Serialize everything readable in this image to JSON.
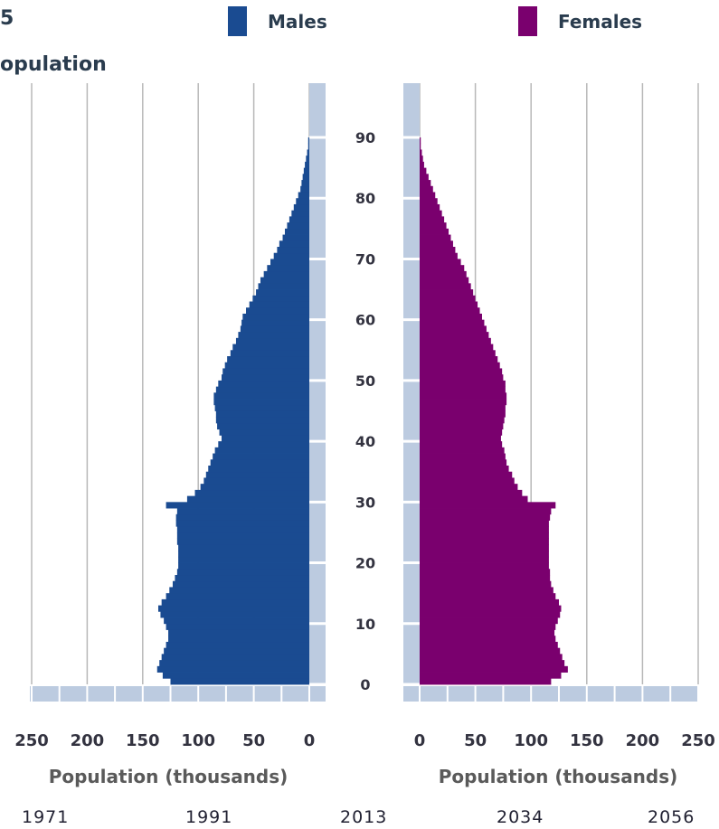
{
  "header": {
    "title_fragment": "5",
    "subtitle_fragment": "opulation"
  },
  "legend": {
    "males": {
      "label": "Males",
      "color": "#1a4b91"
    },
    "females": {
      "label": "Females",
      "color": "#7a006e"
    }
  },
  "timeline": [
    "1971",
    "1991",
    "2013",
    "2034",
    "2056"
  ],
  "chart_data": {
    "type": "bar",
    "orientation": "horizontal",
    "subtype": "population-pyramid",
    "xlabel": "Population (thousands)",
    "x_ticks_left": [
      "250",
      "200",
      "150",
      "100",
      "50",
      "0"
    ],
    "x_ticks_right": [
      "0",
      "50",
      "100",
      "150",
      "200",
      "250"
    ],
    "xlim": [
      0,
      250
    ],
    "age_ticks": [
      "0",
      "10",
      "20",
      "30",
      "40",
      "50",
      "60",
      "70",
      "80",
      "90"
    ],
    "age_range": [
      0,
      90
    ],
    "grid": true,
    "categories": [
      0,
      1,
      2,
      3,
      4,
      5,
      6,
      7,
      8,
      9,
      10,
      11,
      12,
      13,
      14,
      15,
      16,
      17,
      18,
      19,
      20,
      21,
      22,
      23,
      24,
      25,
      26,
      27,
      28,
      29,
      30,
      31,
      32,
      33,
      34,
      35,
      36,
      37,
      38,
      39,
      40,
      41,
      42,
      43,
      44,
      45,
      46,
      47,
      48,
      49,
      50,
      51,
      52,
      53,
      54,
      55,
      56,
      57,
      58,
      59,
      60,
      61,
      62,
      63,
      64,
      65,
      66,
      67,
      68,
      69,
      70,
      71,
      72,
      73,
      74,
      75,
      76,
      77,
      78,
      79,
      80,
      81,
      82,
      83,
      84,
      85,
      86,
      87,
      88,
      89,
      90
    ],
    "series": [
      {
        "name": "Males",
        "color": "#1a4b91",
        "values": [
          125,
          132,
          137,
          135,
          133,
          131,
          129,
          127,
          127,
          129,
          131,
          134,
          136,
          133,
          129,
          126,
          123,
          121,
          119,
          118,
          118,
          118,
          118,
          119,
          119,
          119,
          120,
          120,
          119,
          129,
          110,
          103,
          98,
          95,
          93,
          91,
          89,
          87,
          85,
          82,
          79,
          81,
          83,
          84,
          84,
          85,
          86,
          86,
          84,
          82,
          79,
          78,
          76,
          74,
          71,
          69,
          66,
          64,
          62,
          61,
          60,
          57,
          54,
          51,
          48,
          46,
          44,
          41,
          38,
          35,
          32,
          29,
          27,
          24,
          22,
          20,
          18,
          16,
          14,
          12,
          10,
          8,
          7,
          6,
          5,
          4,
          3,
          2,
          1,
          1,
          0
        ]
      },
      {
        "name": "Females",
        "color": "#7a006e",
        "values": [
          118,
          127,
          133,
          130,
          128,
          126,
          124,
          122,
          121,
          122,
          124,
          126,
          127,
          125,
          122,
          120,
          118,
          117,
          117,
          116,
          116,
          116,
          116,
          116,
          116,
          116,
          116,
          117,
          118,
          122,
          97,
          92,
          88,
          85,
          83,
          80,
          78,
          77,
          76,
          74,
          73,
          74,
          75,
          76,
          77,
          77,
          78,
          78,
          77,
          77,
          75,
          74,
          72,
          70,
          68,
          66,
          64,
          62,
          60,
          58,
          56,
          54,
          52,
          50,
          48,
          46,
          44,
          42,
          40,
          37,
          34,
          32,
          30,
          28,
          26,
          24,
          22,
          20,
          18,
          16,
          14,
          12,
          10,
          8,
          6,
          4,
          3,
          2,
          1,
          1,
          0
        ]
      }
    ]
  }
}
